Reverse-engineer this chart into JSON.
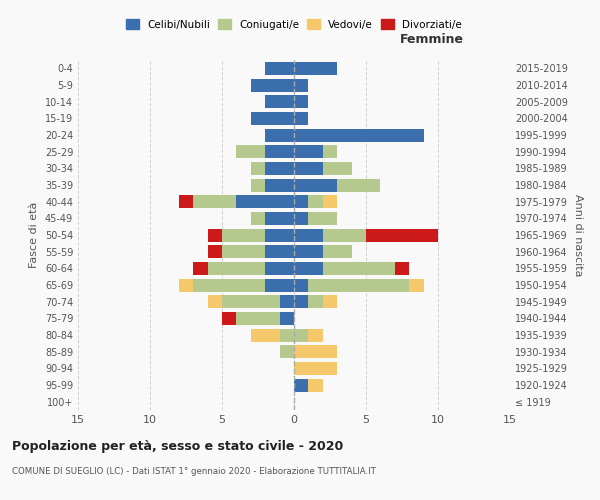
{
  "age_groups": [
    "100+",
    "95-99",
    "90-94",
    "85-89",
    "80-84",
    "75-79",
    "70-74",
    "65-69",
    "60-64",
    "55-59",
    "50-54",
    "45-49",
    "40-44",
    "35-39",
    "30-34",
    "25-29",
    "20-24",
    "15-19",
    "10-14",
    "5-9",
    "0-4"
  ],
  "birth_years": [
    "≤ 1919",
    "1920-1924",
    "1925-1929",
    "1930-1934",
    "1935-1939",
    "1940-1944",
    "1945-1949",
    "1950-1954",
    "1955-1959",
    "1960-1964",
    "1965-1969",
    "1970-1974",
    "1975-1979",
    "1980-1984",
    "1985-1989",
    "1990-1994",
    "1995-1999",
    "2000-2004",
    "2005-2009",
    "2010-2014",
    "2015-2019"
  ],
  "colors": {
    "celibi": "#3a6eac",
    "coniugati": "#b5c98e",
    "vedovi": "#f5c96b",
    "divorziati": "#cc1a1a"
  },
  "males": {
    "celibi": [
      0,
      0,
      0,
      0,
      0,
      1,
      1,
      2,
      2,
      2,
      2,
      2,
      4,
      2,
      2,
      2,
      2,
      3,
      2,
      3,
      2
    ],
    "coniugati": [
      0,
      0,
      0,
      1,
      1,
      3,
      4,
      5,
      4,
      3,
      3,
      1,
      3,
      1,
      1,
      2,
      0,
      0,
      0,
      0,
      0
    ],
    "vedovi": [
      0,
      0,
      0,
      0,
      2,
      0,
      1,
      1,
      0,
      0,
      0,
      0,
      0,
      0,
      0,
      0,
      0,
      0,
      0,
      0,
      0
    ],
    "divorziati": [
      0,
      0,
      0,
      0,
      0,
      1,
      0,
      0,
      1,
      1,
      1,
      0,
      1,
      0,
      0,
      0,
      0,
      0,
      0,
      0,
      0
    ]
  },
  "females": {
    "celibi": [
      0,
      1,
      0,
      0,
      0,
      0,
      1,
      1,
      2,
      2,
      2,
      1,
      1,
      3,
      2,
      2,
      9,
      1,
      1,
      1,
      3
    ],
    "coniugati": [
      0,
      0,
      0,
      0,
      1,
      0,
      1,
      7,
      5,
      2,
      3,
      2,
      1,
      3,
      2,
      1,
      0,
      0,
      0,
      0,
      0
    ],
    "vedovi": [
      0,
      1,
      3,
      3,
      1,
      0,
      1,
      1,
      0,
      0,
      0,
      0,
      1,
      0,
      0,
      0,
      0,
      0,
      0,
      0,
      0
    ],
    "divorziati": [
      0,
      0,
      0,
      0,
      0,
      0,
      0,
      0,
      1,
      0,
      5,
      0,
      0,
      0,
      0,
      0,
      0,
      0,
      0,
      0,
      0
    ]
  },
  "title": "Popolazione per età, sesso e stato civile - 2020",
  "subtitle": "COMUNE DI SUEGLIO (LC) - Dati ISTAT 1° gennaio 2020 - Elaborazione TUTTITALIA.IT",
  "xlabel_right": "Femmine",
  "ylabel_left": "Fasce di età",
  "ylabel_right": "Anni di nascita",
  "xlim": 15,
  "bg_color": "#f9f9f9",
  "grid_color": "#cccccc",
  "legend_labels": [
    "Celibi/Nubili",
    "Coniugati/e",
    "Vedovi/e",
    "Divorziati/e"
  ]
}
